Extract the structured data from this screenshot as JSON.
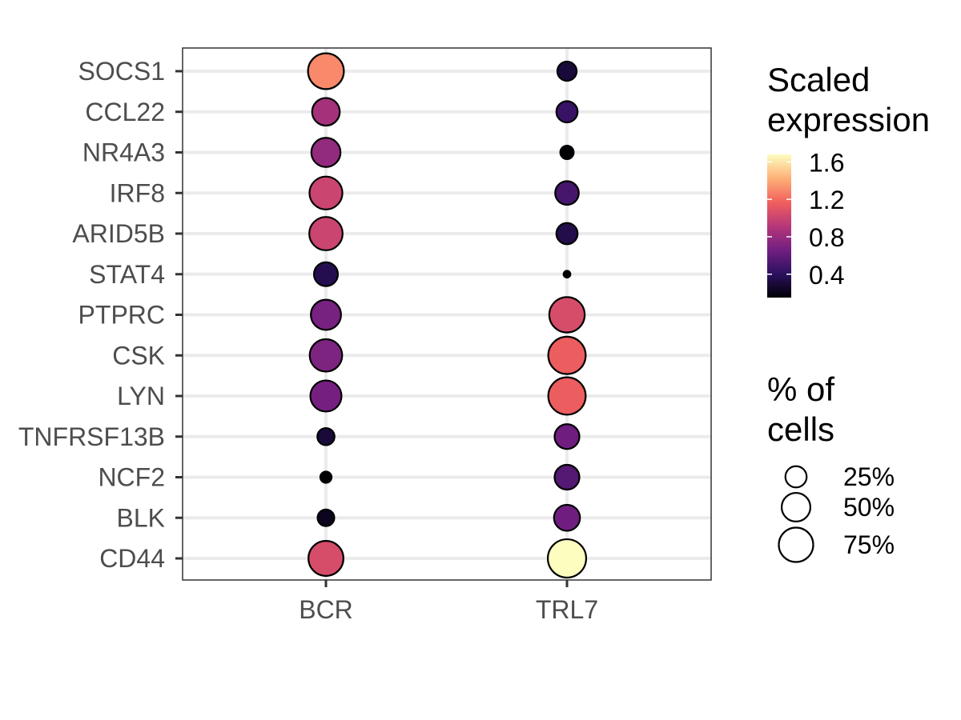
{
  "chart_data": {
    "type": "dot",
    "x_categories": [
      "BCR",
      "TRL7"
    ],
    "y_categories": [
      "SOCS1",
      "CCL22",
      "NR4A3",
      "IRF8",
      "ARID5B",
      "STAT4",
      "PTPRC",
      "CSK",
      "LYN",
      "TNFRSF13B",
      "NCF2",
      "BLK",
      "CD44"
    ],
    "points": [
      {
        "gene": "SOCS1",
        "group": "BCR",
        "expression": 1.3,
        "pct": 82
      },
      {
        "gene": "CCL22",
        "group": "BCR",
        "expression": 0.85,
        "pct": 46
      },
      {
        "gene": "NR4A3",
        "group": "BCR",
        "expression": 0.78,
        "pct": 52
      },
      {
        "gene": "IRF8",
        "group": "BCR",
        "expression": 1.0,
        "pct": 68
      },
      {
        "gene": "ARID5B",
        "group": "BCR",
        "expression": 1.0,
        "pct": 70
      },
      {
        "gene": "STAT4",
        "group": "BCR",
        "expression": 0.36,
        "pct": 33
      },
      {
        "gene": "PTPRC",
        "group": "BCR",
        "expression": 0.68,
        "pct": 56
      },
      {
        "gene": "CSK",
        "group": "BCR",
        "expression": 0.7,
        "pct": 66
      },
      {
        "gene": "LYN",
        "group": "BCR",
        "expression": 0.67,
        "pct": 60
      },
      {
        "gene": "TNFRSF13B",
        "group": "BCR",
        "expression": 0.3,
        "pct": 15
      },
      {
        "gene": "NCF2",
        "group": "BCR",
        "expression": 0.15,
        "pct": 5
      },
      {
        "gene": "BLK",
        "group": "BCR",
        "expression": 0.22,
        "pct": 14
      },
      {
        "gene": "CD44",
        "group": "BCR",
        "expression": 1.05,
        "pct": 78
      },
      {
        "gene": "SOCS1",
        "group": "TRL7",
        "expression": 0.3,
        "pct": 20
      },
      {
        "gene": "CCL22",
        "group": "TRL7",
        "expression": 0.45,
        "pct": 25
      },
      {
        "gene": "NR4A3",
        "group": "TRL7",
        "expression": 0.15,
        "pct": 8
      },
      {
        "gene": "IRF8",
        "group": "TRL7",
        "expression": 0.5,
        "pct": 32
      },
      {
        "gene": "ARID5B",
        "group": "TRL7",
        "expression": 0.35,
        "pct": 25
      },
      {
        "gene": "STAT4",
        "group": "TRL7",
        "expression": 0.15,
        "pct": 1
      },
      {
        "gene": "PTPRC",
        "group": "TRL7",
        "expression": 1.05,
        "pct": 80
      },
      {
        "gene": "CSK",
        "group": "TRL7",
        "expression": 1.15,
        "pct": 90
      },
      {
        "gene": "LYN",
        "group": "TRL7",
        "expression": 1.15,
        "pct": 90
      },
      {
        "gene": "TNFRSF13B",
        "group": "TRL7",
        "expression": 0.65,
        "pct": 36
      },
      {
        "gene": "NCF2",
        "group": "TRL7",
        "expression": 0.55,
        "pct": 36
      },
      {
        "gene": "BLK",
        "group": "TRL7",
        "expression": 0.65,
        "pct": 40
      },
      {
        "gene": "CD44",
        "group": "TRL7",
        "expression": 1.68,
        "pct": 95
      }
    ],
    "color_legend": {
      "title": [
        "Scaled",
        "expression"
      ],
      "min": 0.15,
      "max": 1.68,
      "ticks": [
        1.6,
        1.2,
        0.8,
        0.4
      ],
      "palette": "magma",
      "colors": [
        "#000004",
        "#2c115f",
        "#721f81",
        "#b73779",
        "#f1605d",
        "#feb078",
        "#fcfdbf"
      ]
    },
    "size_legend": {
      "title": [
        "% of",
        "cells"
      ],
      "entries": [
        {
          "value": 25,
          "label": "25%"
        },
        {
          "value": 50,
          "label": "50%"
        },
        {
          "value": 75,
          "label": "75%"
        }
      ]
    },
    "grid": true,
    "theme": "bw",
    "legend_position": "right"
  }
}
